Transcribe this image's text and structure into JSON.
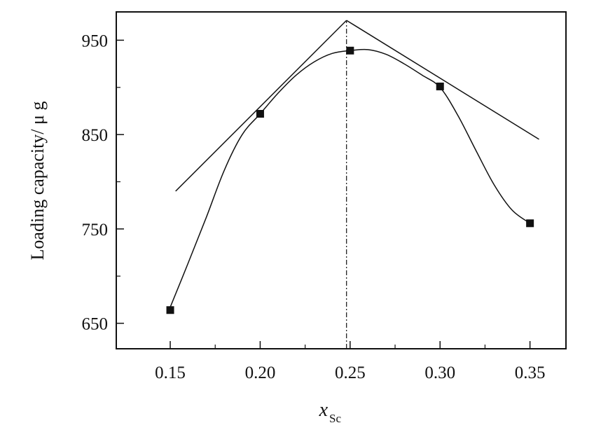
{
  "chart_data": {
    "type": "line",
    "title": "",
    "xlabel": "x",
    "xlabel_subscript": "Sc",
    "ylabel": "Loading capacity/ μ g",
    "xlim": [
      0.12,
      0.37
    ],
    "ylim": [
      623,
      980
    ],
    "x_ticks": [
      "0.15",
      "0.20",
      "0.25",
      "0.30",
      "0.35"
    ],
    "y_ticks": [
      "650",
      "750",
      "850",
      "950"
    ],
    "grid": false,
    "legend": "none",
    "series": [
      {
        "type": "scatter",
        "marker": "square",
        "x": [
          0.15,
          0.2,
          0.25,
          0.3,
          0.35
        ],
        "y": [
          664,
          872,
          939,
          901,
          756
        ]
      },
      {
        "type": "line",
        "style": "smooth-fit",
        "x": [
          0.15,
          0.16,
          0.17,
          0.18,
          0.19,
          0.2,
          0.21,
          0.22,
          0.23,
          0.24,
          0.25,
          0.26,
          0.27,
          0.28,
          0.29,
          0.3,
          0.31,
          0.32,
          0.33,
          0.34,
          0.35
        ],
        "y": [
          667,
          714,
          762,
          812,
          850,
          872,
          894,
          913,
          927,
          936,
          939,
          940,
          935,
          925,
          913,
          900,
          870,
          833,
          797,
          770,
          756
        ]
      },
      {
        "type": "line",
        "style": "tangent-left",
        "x": [
          0.153,
          0.248
        ],
        "y": [
          790,
          971
        ]
      },
      {
        "type": "line",
        "style": "tangent-right",
        "x": [
          0.248,
          0.355
        ],
        "y": [
          971,
          845
        ]
      },
      {
        "type": "line",
        "style": "dash-dot-vertical",
        "x": [
          0.248,
          0.248
        ],
        "y": [
          623,
          971
        ]
      }
    ]
  }
}
